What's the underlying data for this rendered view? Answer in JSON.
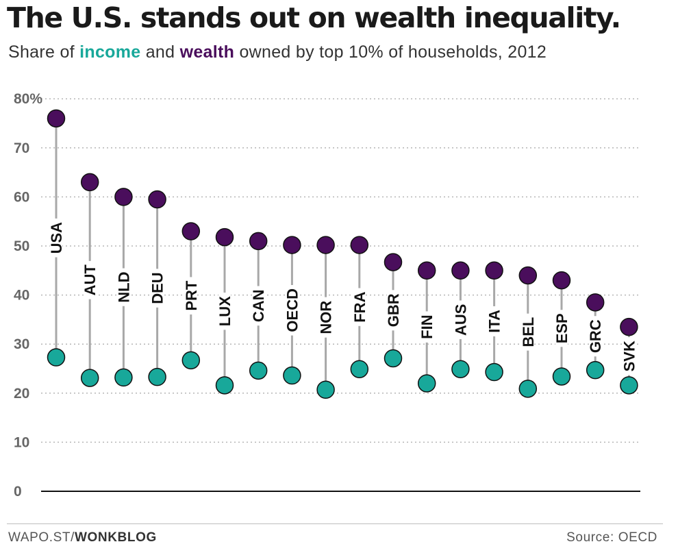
{
  "header": {
    "title": "The U.S. stands out on wealth inequality.",
    "subtitle_prefix": "Share of ",
    "subtitle_income": "income",
    "subtitle_middle": " and ",
    "subtitle_wealth": "wealth",
    "subtitle_suffix": " owned by top 10% of households, 2012"
  },
  "footer": {
    "brand_prefix": "WAPO.ST/",
    "brand_bold": "WONKBLOG",
    "source": "Source: OECD"
  },
  "colors": {
    "income": "#18a89a",
    "wealth": "#4a0e5c",
    "connector": "#a8a8a8",
    "grid": "#b5b5b5",
    "baseline": "#111111"
  },
  "chart_data": {
    "type": "dot",
    "title": "The U.S. stands out on wealth inequality.",
    "subtitle": "Share of income and wealth owned by top 10% of households, 2012",
    "categories": [
      "USA",
      "AUT",
      "NLD",
      "DEU",
      "PRT",
      "LUX",
      "CAN",
      "OECD",
      "NOR",
      "FRA",
      "GBR",
      "FIN",
      "AUS",
      "ITA",
      "BEL",
      "ESP",
      "GRC",
      "SVK"
    ],
    "series": [
      {
        "name": "wealth",
        "values": [
          76,
          63,
          60,
          59.5,
          53,
          51.8,
          51,
          50.2,
          50.2,
          50.2,
          46.7,
          45,
          45,
          45,
          44,
          43,
          38.5,
          33.5
        ]
      },
      {
        "name": "income",
        "values": [
          27.3,
          23.1,
          23.2,
          23.3,
          26.7,
          21.6,
          24.6,
          23.6,
          20.7,
          24.9,
          27.1,
          22,
          24.9,
          24.3,
          20.9,
          23.4,
          24.7,
          21.6
        ]
      }
    ],
    "y_ticks": [
      "80%",
      "70",
      "60",
      "50",
      "40",
      "30",
      "20",
      "10",
      "0"
    ],
    "y_tick_values": [
      80,
      70,
      60,
      50,
      40,
      30,
      20,
      10,
      0
    ],
    "ylim": [
      0,
      80
    ],
    "grid": true,
    "xlabel": "",
    "ylabel": ""
  }
}
